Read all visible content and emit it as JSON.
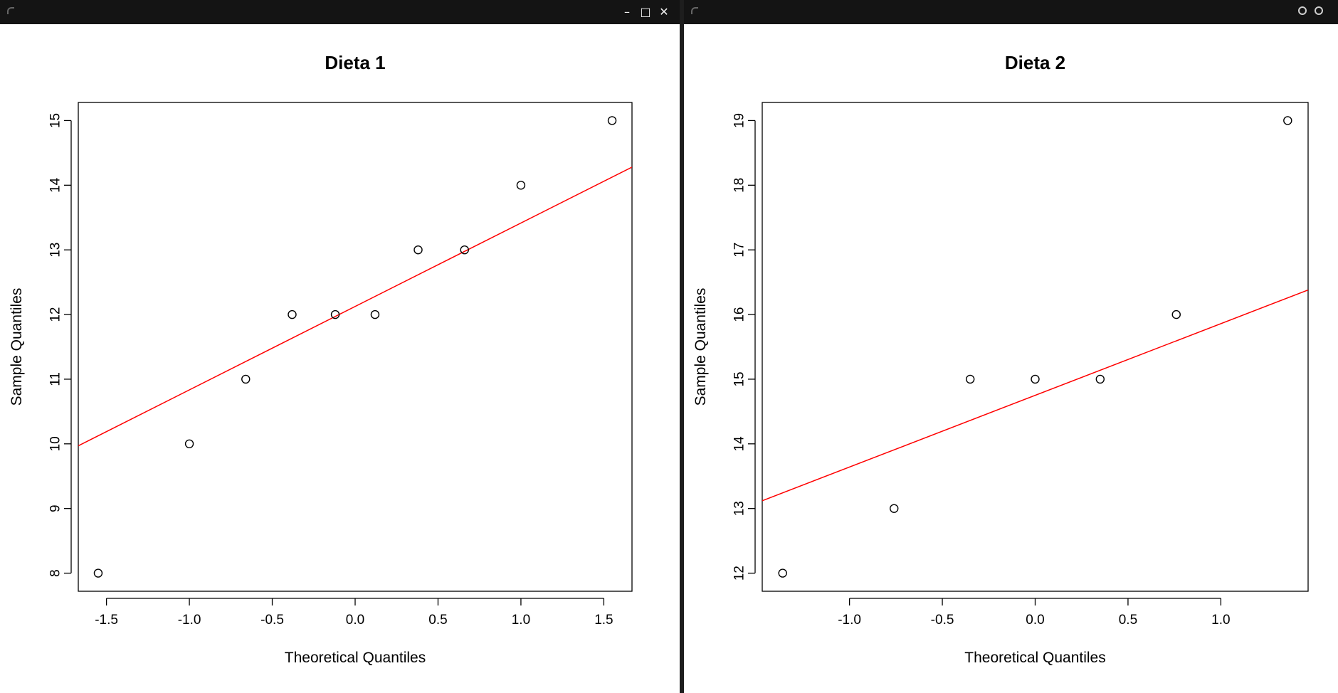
{
  "windows": [
    {
      "controls": [
        "minimize-icon",
        "maximize-icon",
        "close-icon"
      ]
    },
    {
      "controls": [
        "circle-button-icon",
        "circle-button-icon"
      ]
    }
  ],
  "chart_data": [
    {
      "type": "scatter",
      "title": "Dieta 1",
      "xlabel": "Theoretical Quantiles",
      "ylabel": "Sample Quantiles",
      "xlim": [
        -1.67,
        1.67
      ],
      "ylim": [
        7.72,
        15.28
      ],
      "xticks": [
        -1.5,
        -1.0,
        -0.5,
        0.0,
        0.5,
        1.0,
        1.5
      ],
      "xtick_labels": [
        "-1.5",
        "-1.0",
        "-0.5",
        "0.0",
        "0.5",
        "1.0",
        "1.5"
      ],
      "yticks": [
        8,
        9,
        10,
        11,
        12,
        13,
        14,
        15
      ],
      "ytick_labels": [
        "8",
        "9",
        "10",
        "11",
        "12",
        "13",
        "14",
        "15"
      ],
      "points": {
        "x": [
          -1.55,
          -1.0,
          -0.66,
          -0.38,
          -0.12,
          0.12,
          0.38,
          0.66,
          1.0,
          1.55
        ],
        "y": [
          8,
          10,
          11,
          12,
          12,
          12,
          13,
          13,
          14,
          15
        ]
      },
      "reference_line": {
        "x": [
          -1.67,
          1.67
        ],
        "y": [
          9.97,
          14.28
        ],
        "color": "#ff0000"
      },
      "grid": false,
      "marker": "open-circle"
    },
    {
      "type": "scatter",
      "title": "Dieta 2",
      "xlabel": "Theoretical Quantiles",
      "ylabel": "Sample Quantiles",
      "xlim": [
        -1.47,
        1.47
      ],
      "ylim": [
        11.72,
        19.28
      ],
      "xticks": [
        -1.0,
        -0.5,
        0.0,
        0.5,
        1.0
      ],
      "xtick_labels": [
        "-1.0",
        "-0.5",
        "0.0",
        "0.5",
        "1.0"
      ],
      "yticks": [
        12,
        13,
        14,
        15,
        16,
        17,
        18,
        19
      ],
      "ytick_labels": [
        "12",
        "13",
        "14",
        "15",
        "16",
        "17",
        "18",
        "19"
      ],
      "points": {
        "x": [
          -1.36,
          -0.76,
          -0.35,
          0.0,
          0.35,
          0.76,
          1.36
        ],
        "y": [
          12,
          13,
          15,
          15,
          15,
          16,
          19
        ]
      },
      "reference_line": {
        "x": [
          -1.47,
          1.47
        ],
        "y": [
          13.12,
          16.38
        ],
        "color": "#ff0000"
      },
      "grid": false,
      "marker": "open-circle"
    }
  ]
}
